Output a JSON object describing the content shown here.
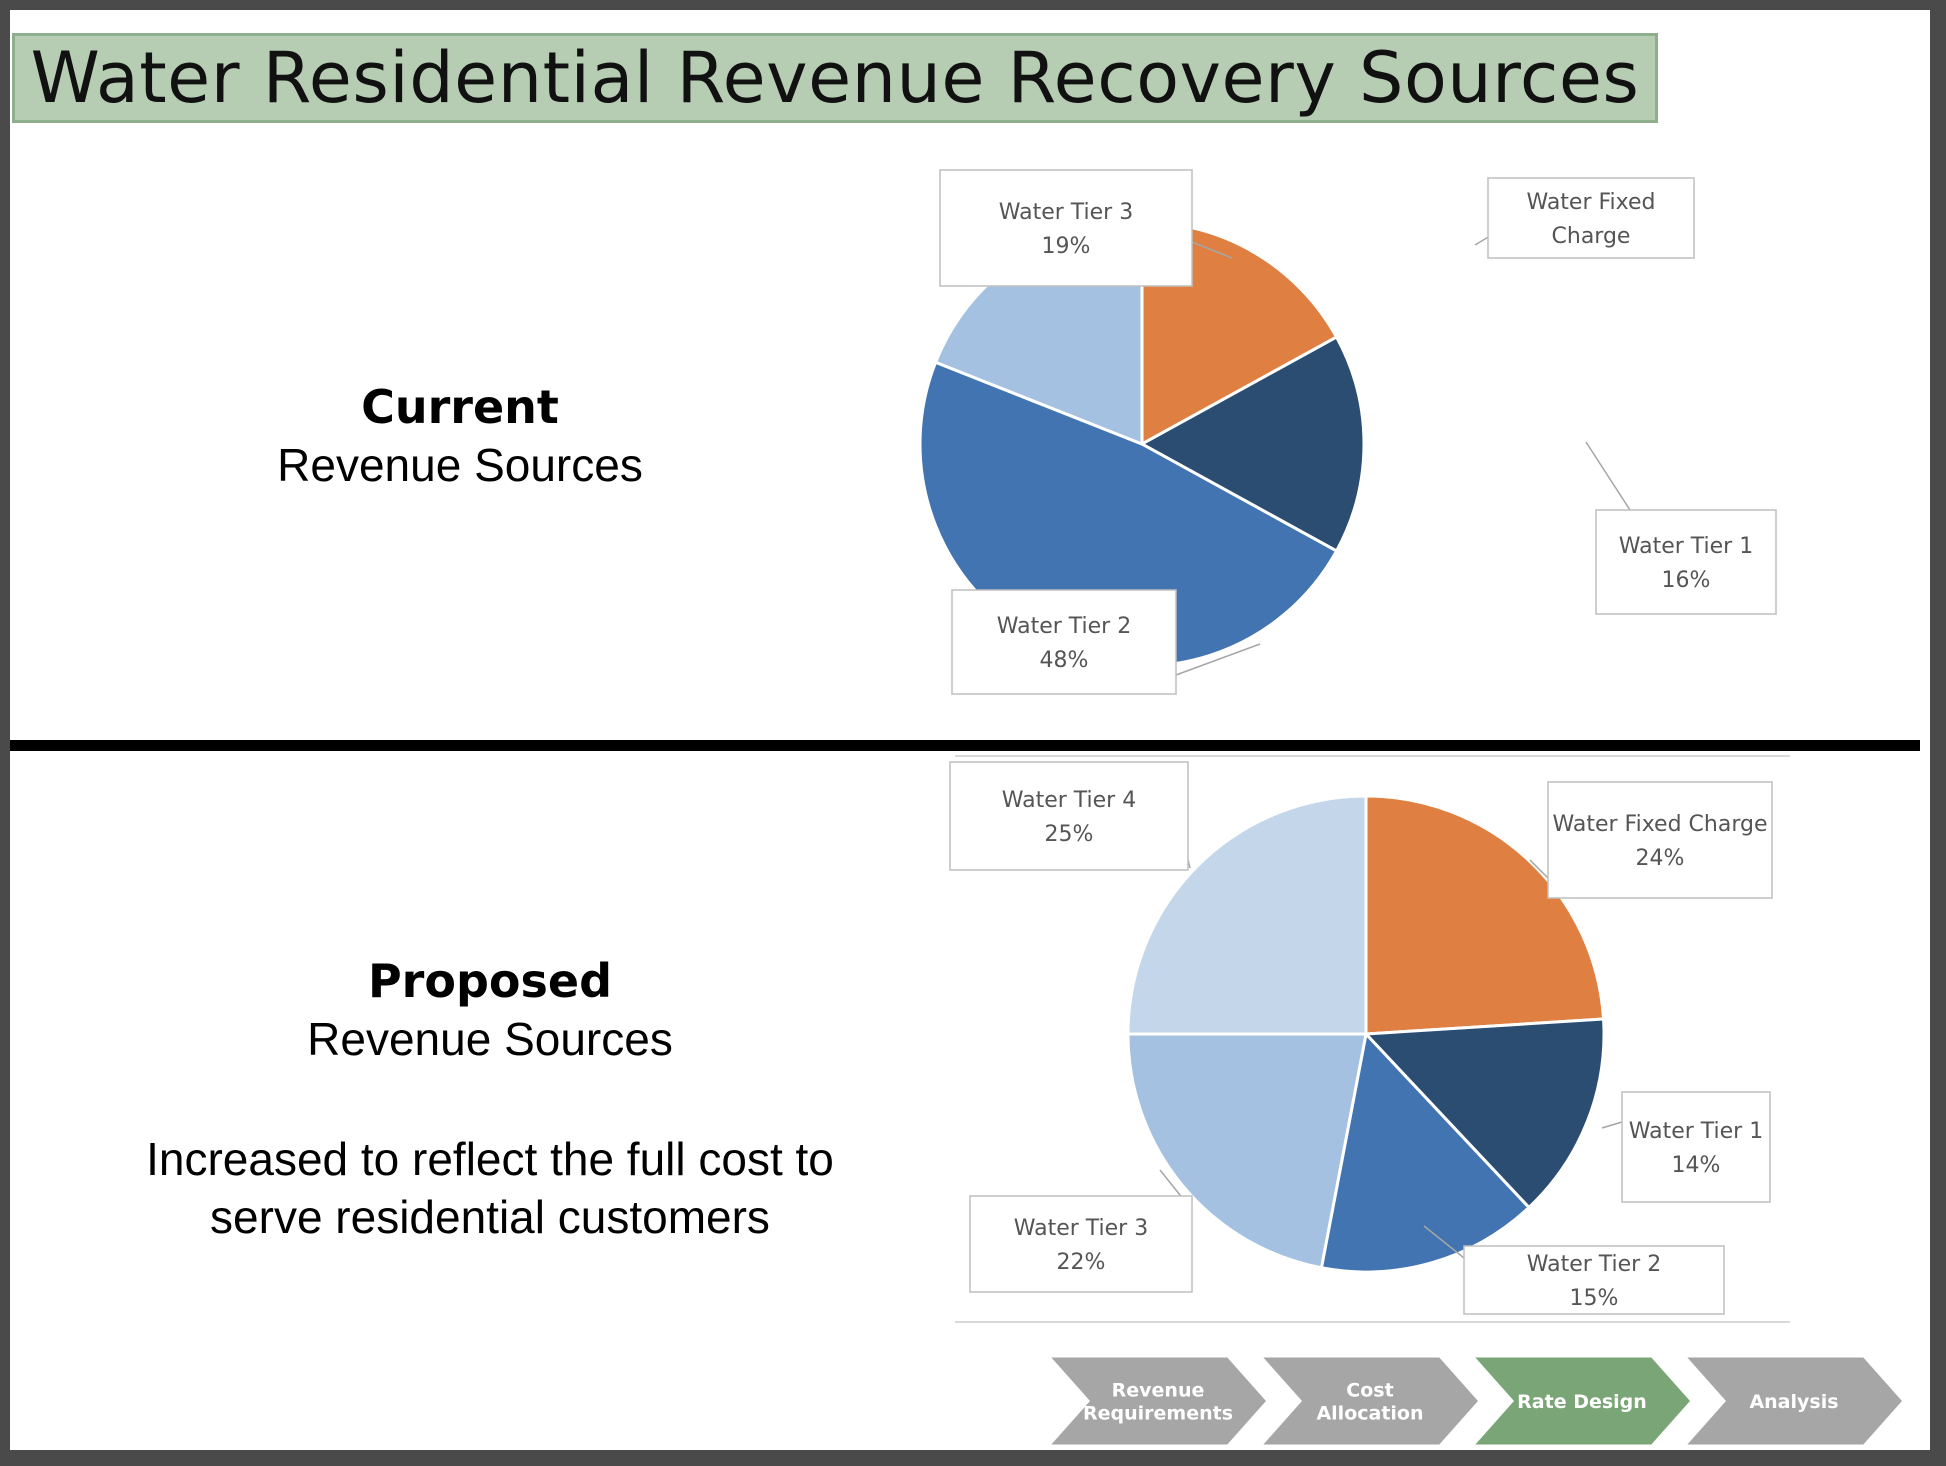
{
  "title": "Water Residential Revenue Recovery Sources",
  "current": {
    "heading": "Current",
    "subheading": "Revenue Sources"
  },
  "proposed": {
    "heading": "Proposed",
    "subheading": "Revenue Sources",
    "note_line1": "Increased to reflect the full cost to",
    "note_line2": "serve residential customers"
  },
  "colors": {
    "fixed": "#e07f42",
    "tier1": "#2b4d72",
    "tier2": "#4174b0",
    "tier3": "#a5c1e2",
    "tier4": "#c3d6ea",
    "banner": "#b6cdb4",
    "chevron_gray": "#a6a6a6",
    "chevron_active": "#7aa576"
  },
  "chart_data": [
    {
      "type": "pie",
      "title": "",
      "slices": [
        {
          "label": "Water Fixed Charge",
          "label_lines": [
            "Water Fixed",
            "Charge"
          ],
          "value_label": "",
          "value": 17,
          "color": "#e07f42"
        },
        {
          "label": "Water Tier 1",
          "label_lines": [
            "Water Tier 1",
            "16%"
          ],
          "value_label": "16%",
          "value": 16,
          "color": "#2b4d72"
        },
        {
          "label": "Water Tier 2",
          "label_lines": [
            "Water Tier 2",
            "48%"
          ],
          "value_label": "48%",
          "value": 48,
          "color": "#4174b0"
        },
        {
          "label": "Water Tier 3",
          "label_lines": [
            "Water Tier 3",
            "19%"
          ],
          "value_label": "19%",
          "value": 19,
          "color": "#a5c1e2"
        }
      ]
    },
    {
      "type": "pie",
      "title": "",
      "slices": [
        {
          "label": "Water Fixed Charge",
          "label_lines": [
            "Water Fixed Charge",
            "24%"
          ],
          "value_label": "24%",
          "value": 24,
          "color": "#e07f42"
        },
        {
          "label": "Water Tier 1",
          "label_lines": [
            "Water Tier 1",
            "14%"
          ],
          "value_label": "14%",
          "value": 14,
          "color": "#2b4d72"
        },
        {
          "label": "Water Tier 2",
          "label_lines": [
            "Water Tier 2",
            "15%"
          ],
          "value_label": "15%",
          "value": 15,
          "color": "#4174b0"
        },
        {
          "label": "Water Tier 3",
          "label_lines": [
            "Water Tier 3",
            "22%"
          ],
          "value_label": "22%",
          "value": 22,
          "color": "#a5c1e2"
        },
        {
          "label": "Water Tier 4",
          "label_lines": [
            "Water Tier 4",
            "25%"
          ],
          "value_label": "25%",
          "value": 25,
          "color": "#c3d6ea"
        }
      ]
    }
  ],
  "process_steps": [
    {
      "lines": [
        "Revenue",
        "Requirements"
      ],
      "active": false
    },
    {
      "lines": [
        "Cost",
        "Allocation"
      ],
      "active": false
    },
    {
      "lines": [
        "Rate Design"
      ],
      "active": true
    },
    {
      "lines": [
        "Analysis"
      ],
      "active": false
    }
  ]
}
